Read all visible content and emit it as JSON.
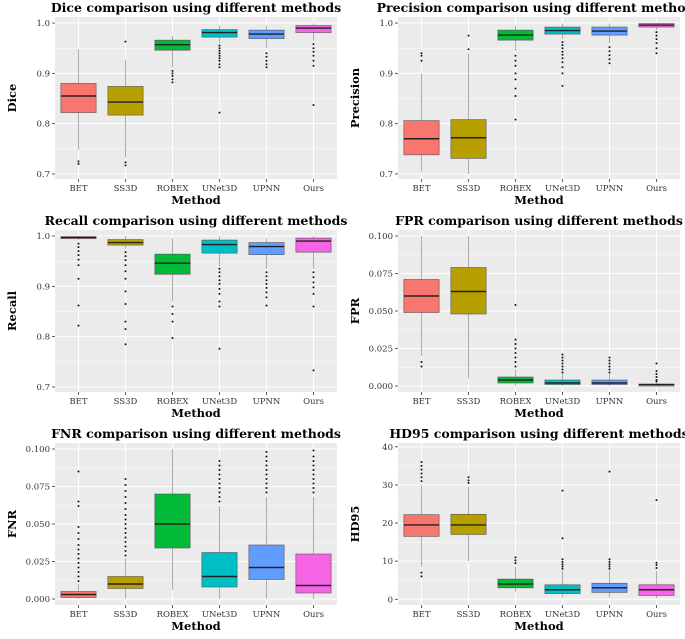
{
  "colors": {
    "BET": "#F8766D",
    "SS3D": "#B79F00",
    "ROBEX": "#00BA38",
    "UNet3D": "#00BFC4",
    "UPNN": "#619CFF",
    "Ours": "#F564E3",
    "panel_bg": "#EBEBEB",
    "grid": "#FFFFFF"
  },
  "chart_data": [
    {
      "type": "box",
      "title": "Dice comparison using different methods",
      "xlabel": "Method",
      "ylabel": "Dice",
      "categories": [
        "BET",
        "SS3D",
        "ROBEX",
        "UNet3D",
        "UPNN",
        "Ours"
      ],
      "ylim": [
        0.69,
        1.012
      ],
      "yticks": [
        0.7,
        0.8,
        0.9,
        1.0
      ],
      "ytick_labels": [
        "0.7",
        "0.8",
        "0.9",
        "1.0"
      ],
      "boxes": [
        {
          "min": 0.748,
          "q1": 0.822,
          "median": 0.855,
          "q3": 0.88,
          "max": 0.948,
          "outliers": [
            0.725,
            0.72
          ]
        },
        {
          "min": 0.733,
          "q1": 0.817,
          "median": 0.843,
          "q3": 0.874,
          "max": 0.927,
          "outliers": [
            0.963,
            0.723,
            0.717
          ]
        },
        {
          "min": 0.912,
          "q1": 0.946,
          "median": 0.957,
          "q3": 0.966,
          "max": 0.975,
          "outliers": [
            0.905,
            0.9,
            0.895,
            0.888,
            0.882
          ]
        },
        {
          "min": 0.96,
          "q1": 0.972,
          "median": 0.981,
          "q3": 0.987,
          "max": 0.995,
          "outliers": [
            0.955,
            0.95,
            0.945,
            0.94,
            0.935,
            0.93,
            0.925,
            0.918,
            0.912,
            0.822
          ]
        },
        {
          "min": 0.95,
          "q1": 0.969,
          "median": 0.978,
          "q3": 0.986,
          "max": 0.995,
          "outliers": [
            0.94,
            0.933,
            0.925,
            0.918,
            0.912
          ]
        },
        {
          "min": 0.965,
          "q1": 0.981,
          "median": 0.99,
          "q3": 0.995,
          "max": 0.999,
          "outliers": [
            0.958,
            0.95,
            0.943,
            0.935,
            0.925,
            0.915,
            0.837
          ]
        }
      ]
    },
    {
      "type": "box",
      "title": "Precision comparison using different methods",
      "xlabel": "Method",
      "ylabel": "Precision",
      "categories": [
        "BET",
        "SS3D",
        "ROBEX",
        "UNet3D",
        "UPNN",
        "Ours"
      ],
      "ylim": [
        0.69,
        1.012
      ],
      "yticks": [
        0.7,
        0.8,
        0.9,
        1.0
      ],
      "ytick_labels": [
        "0.7",
        "0.8",
        "0.9",
        "1.0"
      ],
      "boxes": [
        {
          "min": 0.705,
          "q1": 0.738,
          "median": 0.77,
          "q3": 0.806,
          "max": 0.9,
          "outliers": [
            0.925,
            0.935,
            0.94
          ]
        },
        {
          "min": 0.7,
          "q1": 0.731,
          "median": 0.772,
          "q3": 0.808,
          "max": 0.94,
          "outliers": [
            0.948,
            0.975
          ]
        },
        {
          "min": 0.945,
          "q1": 0.966,
          "median": 0.976,
          "q3": 0.986,
          "max": 0.995,
          "outliers": [
            0.935,
            0.925,
            0.915,
            0.9,
            0.888,
            0.87,
            0.855,
            0.808
          ]
        },
        {
          "min": 0.968,
          "q1": 0.978,
          "median": 0.985,
          "q3": 0.992,
          "max": 0.999,
          "outliers": [
            0.962,
            0.956,
            0.95,
            0.943,
            0.937,
            0.93,
            0.922,
            0.912,
            0.9,
            0.875
          ]
        },
        {
          "min": 0.96,
          "q1": 0.976,
          "median": 0.984,
          "q3": 0.992,
          "max": 0.999,
          "outliers": [
            0.952,
            0.944,
            0.936,
            0.928,
            0.92
          ]
        },
        {
          "min": 0.986,
          "q1": 0.992,
          "median": 0.996,
          "q3": 0.999,
          "max": 1.0,
          "outliers": [
            0.982,
            0.975,
            0.968,
            0.96,
            0.95,
            0.94
          ]
        }
      ]
    },
    {
      "type": "box",
      "title": "Recall comparison using different methods",
      "xlabel": "Method",
      "ylabel": "Recall",
      "categories": [
        "BET",
        "SS3D",
        "ROBEX",
        "UNet3D",
        "UPNN",
        "Ours"
      ],
      "ylim": [
        0.69,
        1.012
      ],
      "yticks": [
        0.7,
        0.8,
        0.9,
        1.0
      ],
      "ytick_labels": [
        "0.7",
        "0.8",
        "0.9",
        "1.0"
      ],
      "boxes": [
        {
          "min": 0.992,
          "q1": 0.995,
          "median": 0.997,
          "q3": 0.999,
          "max": 1.0,
          "outliers": [
            0.985,
            0.978,
            0.97,
            0.962,
            0.953,
            0.942,
            0.915,
            0.862,
            0.822
          ]
        },
        {
          "min": 0.975,
          "q1": 0.982,
          "median": 0.987,
          "q3": 0.993,
          "max": 1.0,
          "outliers": [
            0.968,
            0.96,
            0.952,
            0.942,
            0.93,
            0.915,
            0.89,
            0.865,
            0.83,
            0.815,
            0.785
          ]
        },
        {
          "min": 0.87,
          "q1": 0.924,
          "median": 0.946,
          "q3": 0.964,
          "max": 0.995,
          "outliers": [
            0.86,
            0.845,
            0.83,
            0.797
          ]
        },
        {
          "min": 0.94,
          "q1": 0.966,
          "median": 0.983,
          "q3": 0.992,
          "max": 1.0,
          "outliers": [
            0.935,
            0.928,
            0.92,
            0.912,
            0.905,
            0.895,
            0.885,
            0.87,
            0.86,
            0.776
          ]
        },
        {
          "min": 0.935,
          "q1": 0.963,
          "median": 0.979,
          "q3": 0.987,
          "max": 0.995,
          "outliers": [
            0.928,
            0.92,
            0.912,
            0.905,
            0.897,
            0.888,
            0.878,
            0.862
          ]
        },
        {
          "min": 0.935,
          "q1": 0.968,
          "median": 0.99,
          "q3": 0.996,
          "max": 1.0,
          "outliers": [
            0.928,
            0.918,
            0.908,
            0.898,
            0.885,
            0.86,
            0.733
          ]
        }
      ]
    },
    {
      "type": "box",
      "title": "FPR comparison using different methods",
      "xlabel": "Method",
      "ylabel": "FPR",
      "categories": [
        "BET",
        "SS3D",
        "ROBEX",
        "UNet3D",
        "UPNN",
        "Ours"
      ],
      "ylim": [
        -0.004,
        0.104
      ],
      "yticks": [
        0.0,
        0.025,
        0.05,
        0.075,
        0.1
      ],
      "ytick_labels": [
        "0.000",
        "0.025",
        "0.050",
        "0.075",
        "0.100"
      ],
      "boxes": [
        {
          "min": 0.02,
          "q1": 0.049,
          "median": 0.06,
          "q3": 0.071,
          "max": 0.1,
          "outliers": [
            0.016,
            0.013
          ]
        },
        {
          "min": 0.005,
          "q1": 0.048,
          "median": 0.063,
          "q3": 0.079,
          "max": 0.1,
          "outliers": []
        },
        {
          "min": 0.0,
          "q1": 0.002,
          "median": 0.004,
          "q3": 0.006,
          "max": 0.011,
          "outliers": [
            0.013,
            0.016,
            0.019,
            0.022,
            0.025,
            0.028,
            0.031,
            0.054
          ]
        },
        {
          "min": 0.0,
          "q1": 0.001,
          "median": 0.002,
          "q3": 0.004,
          "max": 0.008,
          "outliers": [
            0.009,
            0.011,
            0.013,
            0.015,
            0.017,
            0.019,
            0.021
          ]
        },
        {
          "min": 0.0,
          "q1": 0.001,
          "median": 0.002,
          "q3": 0.004,
          "max": 0.008,
          "outliers": [
            0.009,
            0.011,
            0.013,
            0.015,
            0.017,
            0.019
          ]
        },
        {
          "min": 0.0,
          "q1": 0.0,
          "median": 0.001,
          "q3": 0.001,
          "max": 0.002,
          "outliers": [
            0.003,
            0.004,
            0.006,
            0.008,
            0.01,
            0.015
          ]
        }
      ]
    },
    {
      "type": "box",
      "title": "FNR comparison using different methods",
      "xlabel": "Method",
      "ylabel": "FNR",
      "categories": [
        "BET",
        "SS3D",
        "ROBEX",
        "UNet3D",
        "UPNN",
        "Ours"
      ],
      "ylim": [
        -0.004,
        0.104
      ],
      "yticks": [
        0.0,
        0.025,
        0.05,
        0.075,
        0.1
      ],
      "ytick_labels": [
        "0.000",
        "0.025",
        "0.050",
        "0.075",
        "0.100"
      ],
      "boxes": [
        {
          "min": 0.0,
          "q1": 0.001,
          "median": 0.003,
          "q3": 0.005,
          "max": 0.01,
          "outliers": [
            0.012,
            0.015,
            0.018,
            0.021,
            0.024,
            0.027,
            0.03,
            0.033,
            0.036,
            0.04,
            0.044,
            0.048,
            0.062,
            0.065,
            0.085
          ]
        },
        {
          "min": 0.0,
          "q1": 0.007,
          "median": 0.01,
          "q3": 0.015,
          "max": 0.027,
          "outliers": [
            0.029,
            0.032,
            0.035,
            0.038,
            0.041,
            0.044,
            0.047,
            0.05,
            0.053,
            0.056,
            0.06,
            0.064,
            0.068,
            0.072,
            0.076,
            0.08
          ]
        },
        {
          "min": 0.006,
          "q1": 0.034,
          "median": 0.05,
          "q3": 0.07,
          "max": 0.1,
          "outliers": []
        },
        {
          "min": 0.0,
          "q1": 0.008,
          "median": 0.015,
          "q3": 0.031,
          "max": 0.062,
          "outliers": [
            0.065,
            0.068,
            0.071,
            0.074,
            0.077,
            0.08,
            0.083,
            0.086,
            0.089,
            0.092
          ]
        },
        {
          "min": 0.0,
          "q1": 0.013,
          "median": 0.021,
          "q3": 0.036,
          "max": 0.068,
          "outliers": [
            0.071,
            0.074,
            0.077,
            0.08,
            0.083,
            0.086,
            0.089,
            0.092,
            0.095,
            0.098
          ]
        },
        {
          "min": 0.0,
          "q1": 0.004,
          "median": 0.009,
          "q3": 0.03,
          "max": 0.068,
          "outliers": [
            0.071,
            0.074,
            0.077,
            0.08,
            0.083,
            0.086,
            0.089,
            0.092,
            0.095,
            0.099
          ]
        }
      ]
    },
    {
      "type": "box",
      "title": "HD95 comparison using different methods",
      "xlabel": "Method",
      "ylabel": "HD95",
      "categories": [
        "BET",
        "SS3D",
        "ROBEX",
        "UNet3D",
        "UPNN",
        "Ours"
      ],
      "ylim": [
        -1.5,
        41
      ],
      "yticks": [
        0,
        10,
        20,
        30,
        40
      ],
      "ytick_labels": [
        "0",
        "10",
        "20",
        "30",
        "40"
      ],
      "boxes": [
        {
          "min": 8.5,
          "q1": 16.5,
          "median": 19.5,
          "q3": 22.2,
          "max": 30.0,
          "outliers": [
            31,
            32,
            33,
            34,
            35,
            36,
            7,
            6
          ]
        },
        {
          "min": 10.0,
          "q1": 17.0,
          "median": 19.5,
          "q3": 22.3,
          "max": 29.5,
          "outliers": [
            30.5,
            31.2,
            32.0
          ]
        },
        {
          "min": 2.0,
          "q1": 3.0,
          "median": 4.0,
          "q3": 5.3,
          "max": 8.5,
          "outliers": [
            9.5,
            10.2,
            11.0
          ]
        },
        {
          "min": 0.5,
          "q1": 1.5,
          "median": 2.5,
          "q3": 3.8,
          "max": 7.5,
          "outliers": [
            8.0,
            8.6,
            9.2,
            9.8,
            10.5,
            16.0,
            28.5
          ]
        },
        {
          "min": 0.5,
          "q1": 1.8,
          "median": 3.0,
          "q3": 4.2,
          "max": 7.5,
          "outliers": [
            8.0,
            8.6,
            9.2,
            9.8,
            10.5,
            33.5
          ]
        },
        {
          "min": 0.3,
          "q1": 1.0,
          "median": 2.5,
          "q3": 3.8,
          "max": 7.5,
          "outliers": [
            8.2,
            9.0,
            9.6,
            26.0
          ]
        }
      ]
    }
  ]
}
